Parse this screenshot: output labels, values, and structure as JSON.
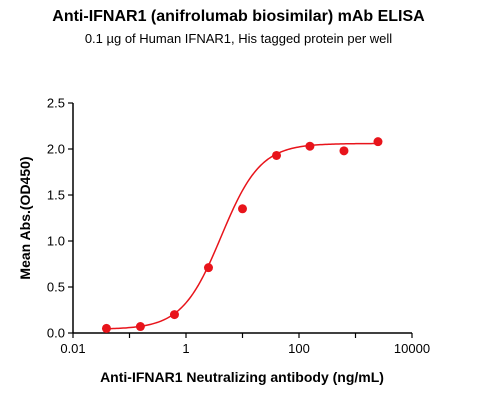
{
  "title": "Anti-IFNAR1 (anifrolumab biosimilar) mAb ELISA",
  "subtitle": "0.1 µg of Human IFNAR1, His tagged protein per well",
  "chart_data": {
    "type": "scatter",
    "title": "Anti-IFNAR1 (anifrolumab biosimilar) mAb ELISA",
    "subtitle": "0.1 µg of Human IFNAR1, His tagged protein per well",
    "xlabel": "Anti-IFNAR1 Neutralizing antibody (ng/mL)",
    "ylabel": "Mean Abs.(OD450)",
    "x_scale": "log",
    "xlim": [
      0.01,
      10000
    ],
    "ylim": [
      0,
      2.5
    ],
    "x_ticks": [
      "0.01",
      "1",
      "100",
      "10000"
    ],
    "x_tick_values": [
      0.01,
      1,
      100,
      10000
    ],
    "y_ticks": [
      "0.0",
      "0.5",
      "1.0",
      "1.5",
      "2.0",
      "2.5"
    ],
    "y_tick_values": [
      0,
      0.5,
      1.0,
      1.5,
      2.0,
      2.5
    ],
    "grid": false,
    "legend": "none",
    "series": [
      {
        "x": [
          0.0391,
          0.156,
          0.625,
          2.5,
          10,
          40,
          156,
          625,
          2500
        ],
        "y": [
          0.05,
          0.07,
          0.2,
          0.71,
          1.35,
          1.93,
          2.03,
          1.98,
          2.08
        ],
        "fit": "4PL",
        "color": "#e8141b"
      }
    ],
    "fit_params": {
      "bottom": 0.04,
      "top": 2.06,
      "ec50": 4.2,
      "hill": 1.25
    }
  }
}
